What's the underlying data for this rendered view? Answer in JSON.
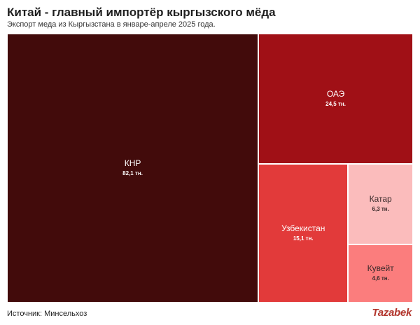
{
  "header": {
    "title": "Китай - главный импортёр кыргызского мёда",
    "subtitle": "Экспорт меда из Кыргызстана в январе-апреле 2025 года."
  },
  "footer": {
    "source": "Источник: Минсельхоз",
    "brand": "Tazabek"
  },
  "chart_data": {
    "type": "treemap",
    "title": "Китай - главный импортёр кыргызского мёда",
    "subtitle": "Экспорт меда из Кыргызстана в январе-апреле 2025 года.",
    "items": [
      {
        "name": "КНР",
        "value": 82.1,
        "label": "82,1 тн.",
        "color": "#420b0b",
        "text_color": "#ffffff"
      },
      {
        "name": "ОАЭ",
        "value": 24.5,
        "label": "24,5 тн.",
        "color": "#a01016",
        "text_color": "#ffffff"
      },
      {
        "name": "Узбекистан",
        "value": 15.1,
        "label": "15,1 тн.",
        "color": "#e23a3a",
        "text_color": "#ffffff"
      },
      {
        "name": "Катар",
        "value": 6.3,
        "label": "6,3 тн.",
        "color": "#fbbcbc",
        "text_color": "#3a2a2a"
      },
      {
        "name": "Кувейт",
        "value": 4.6,
        "label": "4,6 тн.",
        "color": "#fb7d7d",
        "text_color": "#3a2a2a"
      }
    ]
  }
}
